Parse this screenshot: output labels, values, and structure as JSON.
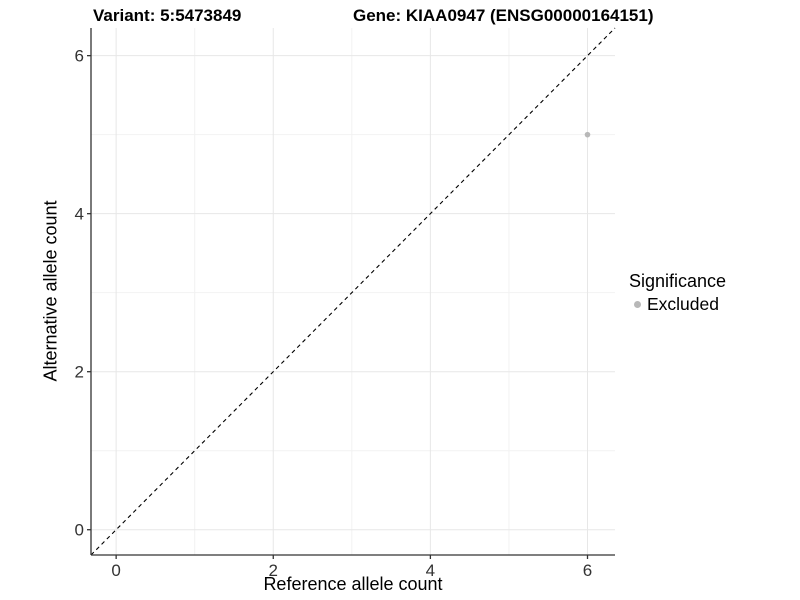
{
  "header": {
    "variant_title": "Variant: 5:5473849",
    "gene_title": "Gene: KIAA0947 (ENSG00000164151)"
  },
  "chart_data": {
    "type": "scatter",
    "title": "Variant: 5:5473849 | Gene: KIAA0947 (ENSG00000164151)",
    "xlabel": "Reference allele count",
    "ylabel": "Alternative allele count",
    "xlim": [
      -0.32,
      6.35
    ],
    "ylim": [
      -0.32,
      6.35
    ],
    "x_ticks": [
      0,
      2,
      4,
      6
    ],
    "x_minor_ticks": [
      1,
      3,
      5
    ],
    "y_ticks": [
      0,
      2,
      4,
      6
    ],
    "y_minor_ticks": [
      1,
      3,
      5
    ],
    "grid": "on",
    "points": [
      {
        "x": 6,
        "y": 5,
        "series": "Excluded"
      }
    ],
    "identity_line": {
      "equation": "y = x",
      "style": "dashed"
    },
    "legend_position": "right"
  },
  "legend": {
    "title": "Significance",
    "entries": [
      {
        "label": "Excluded",
        "color": "#b8b8b8"
      }
    ]
  },
  "colors": {
    "background": "#ffffff",
    "point": "#b8b8b8",
    "axis_line": "#333333",
    "tick_label": "#333333",
    "major_grid": "#e7e7e7",
    "minor_grid": "#f2f2f2",
    "dashed_line": "#000000",
    "title_text": "#000000"
  }
}
